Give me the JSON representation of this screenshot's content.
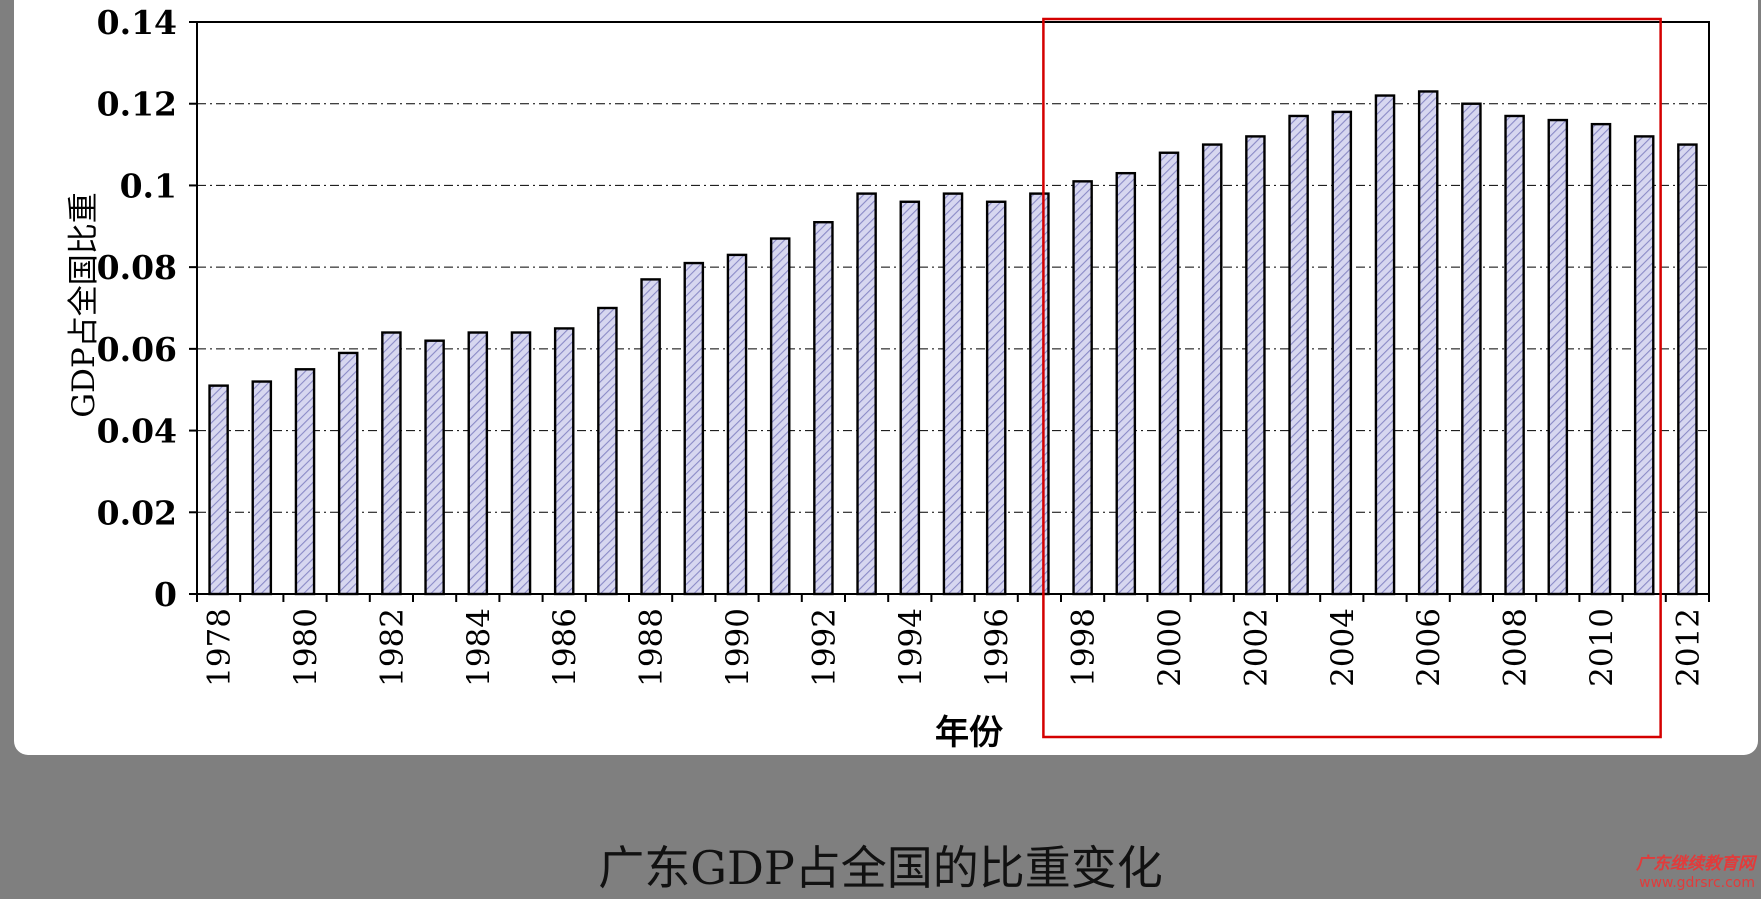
{
  "caption": "广东GDP占全国的比重变化",
  "watermark": {
    "name": "广东继续教育网",
    "url": "www.gdrsrc.com"
  },
  "colors": {
    "background": "#7f7f7f",
    "panel": "#ffffff",
    "bar_fill": "#d7d7f0",
    "bar_hatch": "#8a8ac6",
    "bar_stroke": "#000000",
    "highlight_box": "#d40000",
    "grid": "#000000"
  },
  "chart_data": {
    "type": "bar",
    "title": "",
    "xlabel": "年份",
    "ylabel": "GDP占全国比重",
    "ylim": [
      0,
      0.14
    ],
    "yticks": [
      "0",
      "0.02",
      "0.04",
      "0.06",
      "0.08",
      "0.1",
      "0.12",
      "0.14"
    ],
    "grid": "horizontal dash-dot",
    "bar_pattern": "diagonal hatch",
    "categories": [
      "1978",
      "1979",
      "1980",
      "1981",
      "1982",
      "1983",
      "1984",
      "1985",
      "1986",
      "1987",
      "1988",
      "1989",
      "1990",
      "1991",
      "1992",
      "1993",
      "1994",
      "1995",
      "1996",
      "1997",
      "1998",
      "1999",
      "2000",
      "2001",
      "2002",
      "2003",
      "2004",
      "2005",
      "2006",
      "2007",
      "2008",
      "2009",
      "2010",
      "2011",
      "2012"
    ],
    "xtick_labels": [
      "1978",
      "",
      "1980",
      "",
      "1982",
      "",
      "1984",
      "",
      "1986",
      "",
      "1988",
      "",
      "1990",
      "",
      "1992",
      "",
      "1994",
      "",
      "1996",
      "",
      "1998",
      "",
      "2000",
      "",
      "2002",
      "",
      "2004",
      "",
      "2006",
      "",
      "2008",
      "",
      "2010",
      "",
      "2012"
    ],
    "values": [
      0.051,
      0.052,
      0.055,
      0.059,
      0.064,
      0.062,
      0.064,
      0.064,
      0.065,
      0.07,
      0.077,
      0.081,
      0.083,
      0.087,
      0.091,
      0.098,
      0.096,
      0.098,
      0.096,
      0.098,
      0.101,
      0.103,
      0.108,
      0.11,
      0.112,
      0.117,
      0.118,
      0.122,
      0.123,
      0.12,
      0.117,
      0.116,
      0.115,
      0.112,
      0.11
    ],
    "highlight": {
      "from": "1998",
      "to": "2011",
      "shape": "rectangle outline"
    }
  }
}
